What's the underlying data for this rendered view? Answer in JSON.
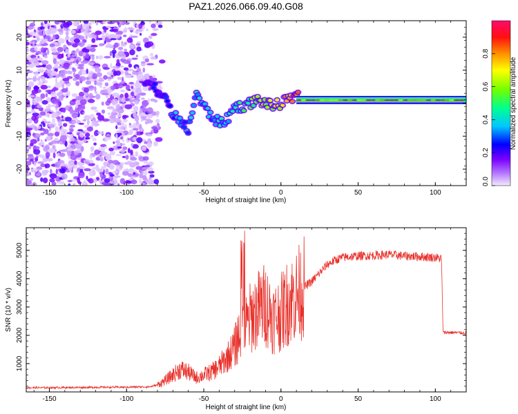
{
  "title": "PAZ1.2026.066.09.40.G08",
  "chart_data": [
    {
      "type": "heatmap",
      "name": "spectrogram",
      "xlabel": "Height of straight line (km)",
      "ylabel": "Frequency (Hz)",
      "xlim": [
        -165,
        120
      ],
      "ylim": [
        -25,
        25
      ],
      "xticks": [
        "-150",
        "-100",
        "-50",
        "0",
        "50",
        "100"
      ],
      "xtick_values": [
        -150,
        -100,
        -50,
        0,
        50,
        100
      ],
      "yticks": [
        "20",
        "10",
        "0",
        "-10",
        "-20"
      ],
      "ytick_values": [
        20,
        10,
        0,
        -10,
        -20
      ],
      "colorbar": {
        "label": "Normalized spectral amplitude",
        "range": [
          0,
          1
        ],
        "ticks": [
          "0.0",
          "0.2",
          "0.4",
          "0.6",
          "0.8"
        ],
        "tick_values": [
          0.0,
          0.2,
          0.4,
          0.6,
          0.8
        ],
        "colors": [
          "#e8d8ff",
          "#8000ff",
          "#0000ff",
          "#00c0ff",
          "#00ff80",
          "#80ff00",
          "#ffff00",
          "#ff8000",
          "#ff0000",
          "#ff0080"
        ]
      },
      "signal_track": {
        "description_points_x_km": [
          -85,
          -80,
          -75,
          -70,
          -65,
          -60,
          -55,
          -50,
          -45,
          -40,
          -35,
          -30,
          -25,
          -20,
          -15,
          -10,
          -5,
          0,
          5,
          10,
          20,
          40,
          60,
          80,
          100,
          120
        ],
        "frequency_hz": [
          6,
          4,
          1,
          -3,
          -6,
          -8,
          3,
          -1,
          -4,
          -6,
          -5,
          -1,
          -1,
          0,
          1,
          0,
          -1,
          0,
          1,
          2,
          0.5,
          1,
          1,
          1,
          1,
          1
        ],
        "amplitude": [
          0.1,
          0.15,
          0.2,
          0.25,
          0.25,
          0.25,
          0.3,
          0.3,
          0.25,
          0.3,
          0.3,
          0.35,
          0.4,
          0.45,
          0.5,
          0.5,
          0.55,
          0.6,
          0.7,
          0.8,
          0.9,
          0.95,
          0.95,
          0.95,
          0.95,
          0.95
        ]
      }
    },
    {
      "type": "line",
      "name": "snr",
      "xlabel": "Height of straight line (km)",
      "ylabel": "SNR (10 * v/v)",
      "color": "#e8302a",
      "xlim": [
        -165,
        120
      ],
      "ylim": [
        0,
        5800
      ],
      "xticks": [
        "-150",
        "-100",
        "-50",
        "0",
        "50",
        "100"
      ],
      "xtick_values": [
        -150,
        -100,
        -50,
        0,
        50,
        100
      ],
      "yticks": [
        "1000",
        "2000",
        "3000",
        "4000",
        "5000"
      ],
      "ytick_values": [
        1000,
        2000,
        3000,
        4000,
        5000
      ],
      "x": [
        -165,
        -150,
        -125,
        -100,
        -85,
        -80,
        -75,
        -70,
        -65,
        -60,
        -55,
        -50,
        -45,
        -40,
        -35,
        -30,
        -26,
        -25,
        -24,
        -22,
        -20,
        -15,
        -10,
        -5,
        0,
        5,
        10,
        15,
        20,
        25,
        30,
        35,
        40,
        50,
        60,
        70,
        80,
        90,
        100,
        104,
        105,
        110,
        120
      ],
      "y": [
        150,
        150,
        160,
        170,
        180,
        250,
        400,
        600,
        800,
        700,
        500,
        600,
        700,
        900,
        1200,
        1600,
        2200,
        4500,
        2500,
        2300,
        2600,
        2900,
        3100,
        2600,
        2800,
        3200,
        3400,
        3700,
        3900,
        4200,
        4500,
        4650,
        4750,
        4800,
        4820,
        4850,
        4800,
        4780,
        4750,
        4700,
        2100,
        2100,
        2080
      ]
    }
  ]
}
